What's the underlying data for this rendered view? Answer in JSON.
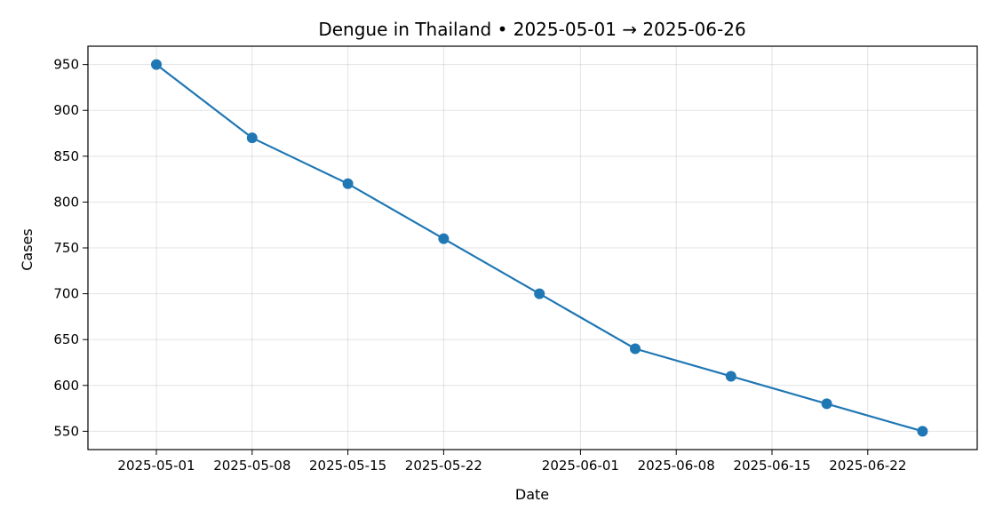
{
  "chart_data": {
    "type": "line",
    "title": "Dengue in Thailand • 2025-05-01 → 2025-06-26",
    "xlabel": "Date",
    "ylabel": "Cases",
    "x": [
      "2025-05-01",
      "2025-05-08",
      "2025-05-15",
      "2025-05-22",
      "2025-05-29",
      "2025-06-05",
      "2025-06-12",
      "2025-06-19",
      "2025-06-26"
    ],
    "series": [
      {
        "values": [
          950,
          870,
          820,
          760,
          700,
          640,
          610,
          580,
          550
        ],
        "color": "#1f77b4"
      }
    ],
    "x_ticks": [
      "2025-05-01",
      "2025-05-08",
      "2025-05-15",
      "2025-05-22",
      "2025-06-01",
      "2025-06-08",
      "2025-06-15",
      "2025-06-22"
    ],
    "y_ticks": [
      550,
      600,
      650,
      700,
      750,
      800,
      850,
      900,
      950
    ],
    "xlim": [
      "2025-04-26",
      "2025-06-30"
    ],
    "ylim": [
      530,
      970
    ],
    "grid": true,
    "marker": "circle"
  }
}
